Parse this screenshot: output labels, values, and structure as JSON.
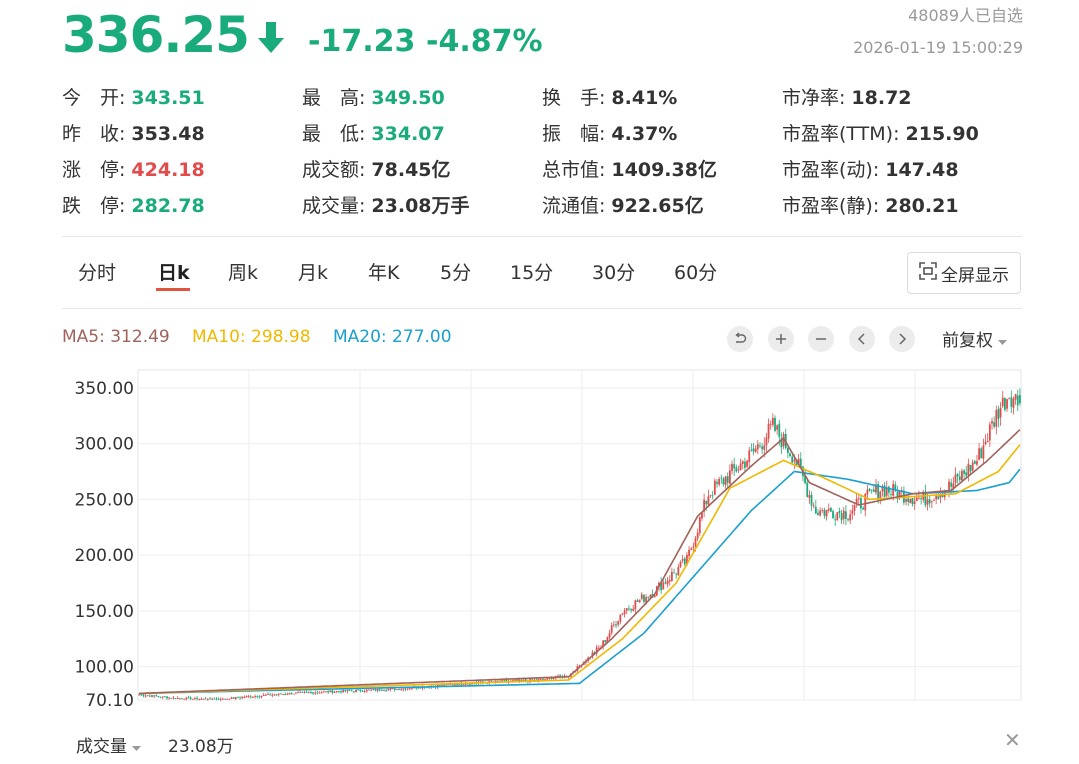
{
  "quote": {
    "price": "336.25",
    "change": "-17.23",
    "change_pct": "-4.87%",
    "watchers": "48089人已自选",
    "timestamp": "2026-01-19 15:00:29",
    "color_down": "#1aab7c",
    "color_up": "#e24b4b"
  },
  "stats": {
    "open_label": "今　开:",
    "open": "343.51",
    "prev_close_label": "昨　收:",
    "prev_close": "353.48",
    "limit_up_label": "涨　停:",
    "limit_up": "424.18",
    "limit_down_label": "跌　停:",
    "limit_down": "282.78",
    "high_label": "最　高:",
    "high": "349.50",
    "low_label": "最　低:",
    "low": "334.07",
    "amount_label": "成交额:",
    "amount": "78.45亿",
    "volume_label": "成交量:",
    "volume": "23.08万手",
    "turnover_label": "换　手:",
    "turnover": "8.41%",
    "amplitude_label": "振　幅:",
    "amplitude": "4.37%",
    "mktcap_label": "总市值:",
    "mktcap": "1409.38亿",
    "float_cap_label": "流通值:",
    "float_cap": "922.65亿",
    "pb_label": "市净率:",
    "pb": "18.72",
    "pe_ttm_label": "市盈率(TTM):",
    "pe_ttm": "215.90",
    "pe_dyn_label": "市盈率(动):",
    "pe_dyn": "147.48",
    "pe_static_label": "市盈率(静):",
    "pe_static": "280.21"
  },
  "tabs": [
    "分时",
    "日k",
    "周k",
    "月k",
    "年K",
    "5分",
    "15分",
    "30分",
    "60分"
  ],
  "active_tab": "日k",
  "fullscreen_label": "全屏显示",
  "ma": {
    "ma5": "MA5: 312.49",
    "ma5_color": "#a0625a",
    "ma10": "MA10: 298.98",
    "ma10_color": "#f0b800",
    "ma20": "MA20: 277.00",
    "ma20_color": "#1a9fd0"
  },
  "adjust_label": "前复权",
  "volume_label": "成交量",
  "volume_value": "23.08万",
  "chart_data": {
    "type": "candlestick",
    "y_ticks": [
      "350.00",
      "300.00",
      "250.00",
      "200.00",
      "150.00",
      "100.00",
      "70.10"
    ],
    "y_tick_values": [
      350,
      300,
      250,
      200,
      150,
      100,
      70.1
    ],
    "ylim": [
      70.1,
      366
    ],
    "grid": true,
    "anchors": [
      [
        0,
        75
      ],
      [
        15,
        72
      ],
      [
        35,
        70
      ],
      [
        50,
        73
      ],
      [
        70,
        76
      ],
      [
        95,
        78
      ],
      [
        120,
        80
      ],
      [
        145,
        84
      ],
      [
        160,
        86
      ],
      [
        185,
        88
      ],
      [
        200,
        92
      ],
      [
        215,
        118
      ],
      [
        225,
        150
      ],
      [
        240,
        168
      ],
      [
        255,
        195
      ],
      [
        265,
        255
      ],
      [
        285,
        290
      ],
      [
        295,
        315
      ],
      [
        305,
        288
      ],
      [
        315,
        240
      ],
      [
        330,
        238
      ],
      [
        345,
        260
      ],
      [
        365,
        250
      ],
      [
        378,
        262
      ],
      [
        390,
        285
      ],
      [
        400,
        330
      ],
      [
        405,
        345
      ],
      [
        410,
        336.25
      ]
    ],
    "ma5_anchors": [
      [
        0,
        76
      ],
      [
        200,
        91
      ],
      [
        220,
        125
      ],
      [
        240,
        165
      ],
      [
        260,
        235
      ],
      [
        285,
        280
      ],
      [
        300,
        305
      ],
      [
        312,
        265
      ],
      [
        335,
        245
      ],
      [
        360,
        255
      ],
      [
        378,
        258
      ],
      [
        395,
        285
      ],
      [
        410,
        312.49
      ]
    ],
    "ma10_anchors": [
      [
        0,
        76
      ],
      [
        200,
        88
      ],
      [
        225,
        125
      ],
      [
        250,
        175
      ],
      [
        275,
        260
      ],
      [
        300,
        285
      ],
      [
        318,
        270
      ],
      [
        340,
        250
      ],
      [
        380,
        255
      ],
      [
        400,
        275
      ],
      [
        410,
        298.98
      ]
    ],
    "ma20_anchors": [
      [
        0,
        76
      ],
      [
        205,
        85
      ],
      [
        235,
        130
      ],
      [
        260,
        185
      ],
      [
        285,
        240
      ],
      [
        305,
        275
      ],
      [
        330,
        268
      ],
      [
        360,
        255
      ],
      [
        390,
        258
      ],
      [
        405,
        265
      ],
      [
        410,
        277.0
      ]
    ]
  }
}
